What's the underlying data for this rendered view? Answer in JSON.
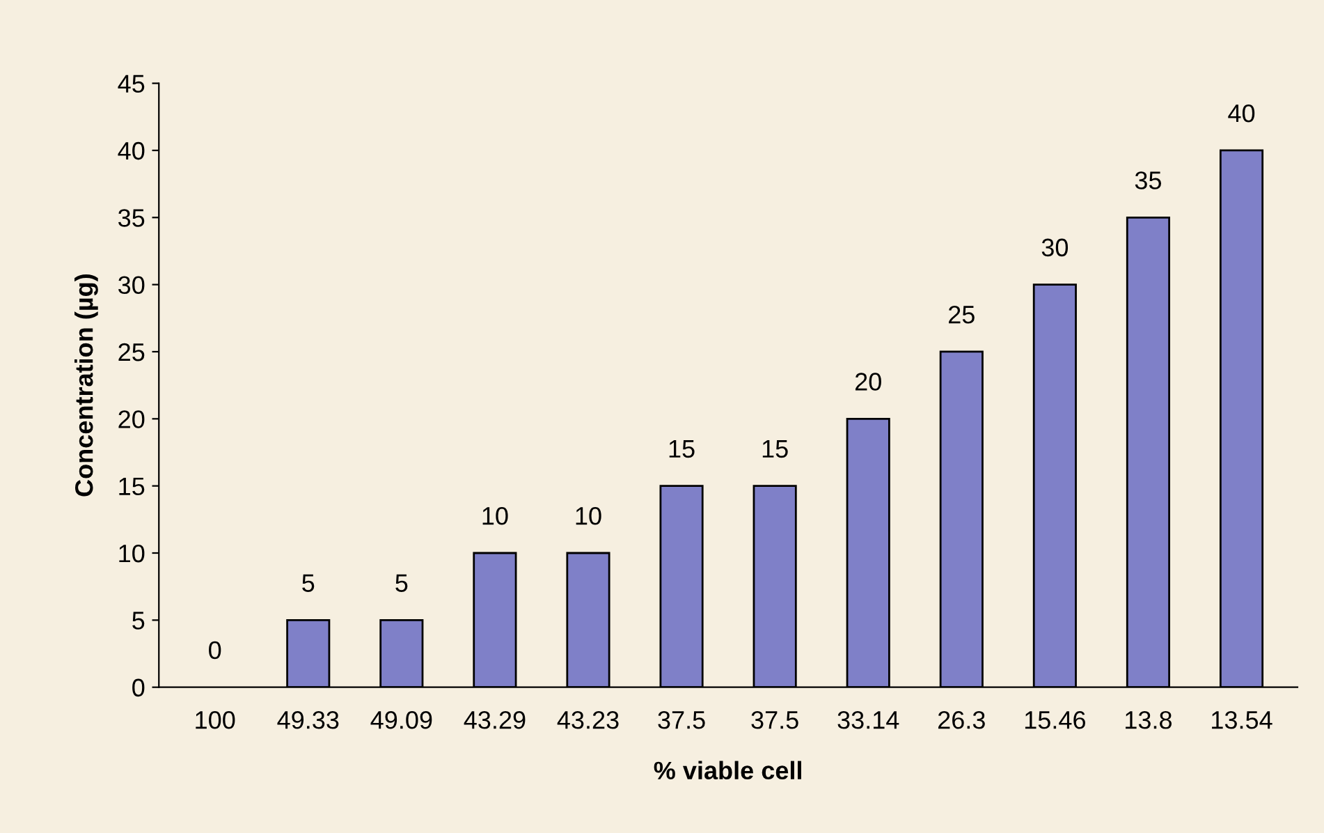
{
  "chart_data": {
    "type": "bar",
    "xlabel": "% viable cell",
    "ylabel": "Concentration (µg)",
    "categories": [
      "100",
      "49.33",
      "49.09",
      "43.29",
      "43.23",
      "37.5",
      "37.5",
      "33.14",
      "26.3",
      "15.46",
      "13.8",
      "13.54"
    ],
    "values": [
      0,
      5,
      5,
      10,
      10,
      15,
      15,
      20,
      25,
      30,
      35,
      40
    ],
    "color": "#7f80c8",
    "data_labels": true,
    "ylim": [
      0,
      45
    ],
    "yticks": [
      0,
      5,
      10,
      15,
      20,
      25,
      30,
      35,
      40,
      45
    ],
    "grid": false,
    "legend": false
  }
}
